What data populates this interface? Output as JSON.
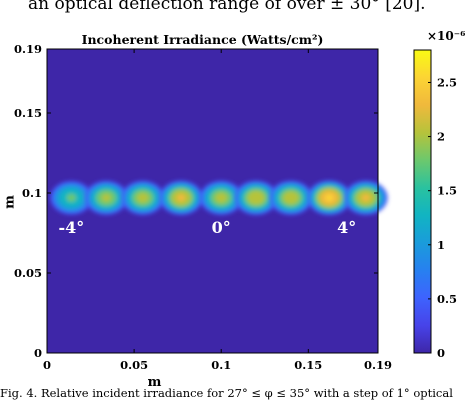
{
  "paper": {
    "top_text": "an optical deflection range of over ± 30° [20].",
    "caption": "Fig. 4. Relative incident irradiance for 27° ≤ φ ≤ 35° with a step of 1° optical"
  },
  "chart_data": {
    "type": "heatmap",
    "title": "Incoherent Irradiance (Watts/cm²)",
    "xlabel": "m",
    "ylabel": "m",
    "xlim": [
      0,
      0.19
    ],
    "ylim": [
      0,
      0.19
    ],
    "xticks": [
      "0",
      "0.05",
      "0.1",
      "0.15",
      "0.19"
    ],
    "xtick_values": [
      0,
      0.05,
      0.1,
      0.15,
      0.19
    ],
    "yticks": [
      "0",
      "0.05",
      "0.1",
      "0.15",
      "0.19"
    ],
    "ytick_values": [
      0,
      0.05,
      0.1,
      0.15,
      0.19
    ],
    "colorbar": {
      "exponent_label": "×10⁻⁶",
      "range": [
        0,
        2.8
      ],
      "ticks": [
        "0",
        "0.5",
        "1",
        "1.5",
        "2",
        "2.5"
      ],
      "tick_values": [
        0,
        0.5,
        1,
        1.5,
        2,
        2.5
      ],
      "colormap": [
        "#3e26a8",
        "#4743e9",
        "#3e63fe",
        "#2780f0",
        "#1a9cdb",
        "#11b4c2",
        "#2ac29f",
        "#6cc86d",
        "#b6c33b",
        "#f0b93c",
        "#fcd434",
        "#f9fb14"
      ]
    },
    "background_color": "#3e26a8",
    "spots": {
      "y": 0.097,
      "x": [
        0.014,
        0.034,
        0.055,
        0.077,
        0.1,
        0.12,
        0.14,
        0.162,
        0.183
      ],
      "peak": [
        1.75,
        2.05,
        2.1,
        2.35,
        2.1,
        2.25,
        2.2,
        2.65,
        2.35
      ],
      "x_width": 0.01,
      "y_width": 0.0085
    },
    "annotations": [
      {
        "text": "-4°",
        "x": 0.014,
        "y": 0.082
      },
      {
        "text": "0°",
        "x": 0.1,
        "y": 0.082
      },
      {
        "text": "4°",
        "x": 0.172,
        "y": 0.082
      }
    ]
  }
}
